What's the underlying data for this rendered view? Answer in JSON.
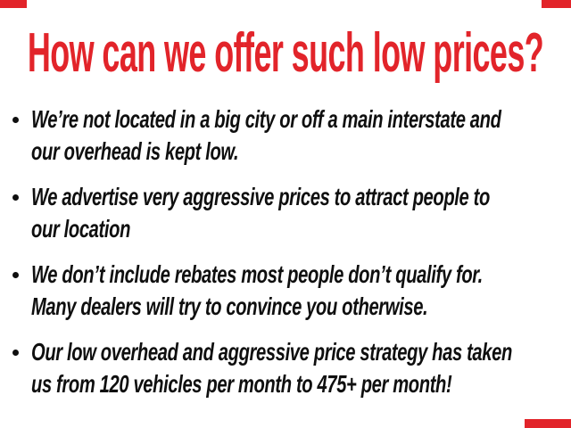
{
  "slide": {
    "title": "How can we offer such low prices?",
    "bullets": [
      {
        "lines": [
          "We’re not located in a big city or off a main interstate and",
          "our overhead is kept low."
        ]
      },
      {
        "lines": [
          "We advertise very aggressive prices to attract people to",
          "our location"
        ]
      },
      {
        "lines": [
          "We don’t include rebates most people don’t qualify for.",
          "Many dealers will try to convince you otherwise."
        ]
      },
      {
        "lines": [
          "Our low overhead and aggressive price strategy has taken",
          "us from 120 vehicles per month to 475+ per month!"
        ]
      }
    ],
    "colors": {
      "accent_red": "#e2242a",
      "text_black": "#0f0f0f",
      "background": "#ffffff"
    },
    "decorations": {
      "corner_marks": [
        "top-left",
        "top-right",
        "bottom-right"
      ]
    }
  }
}
